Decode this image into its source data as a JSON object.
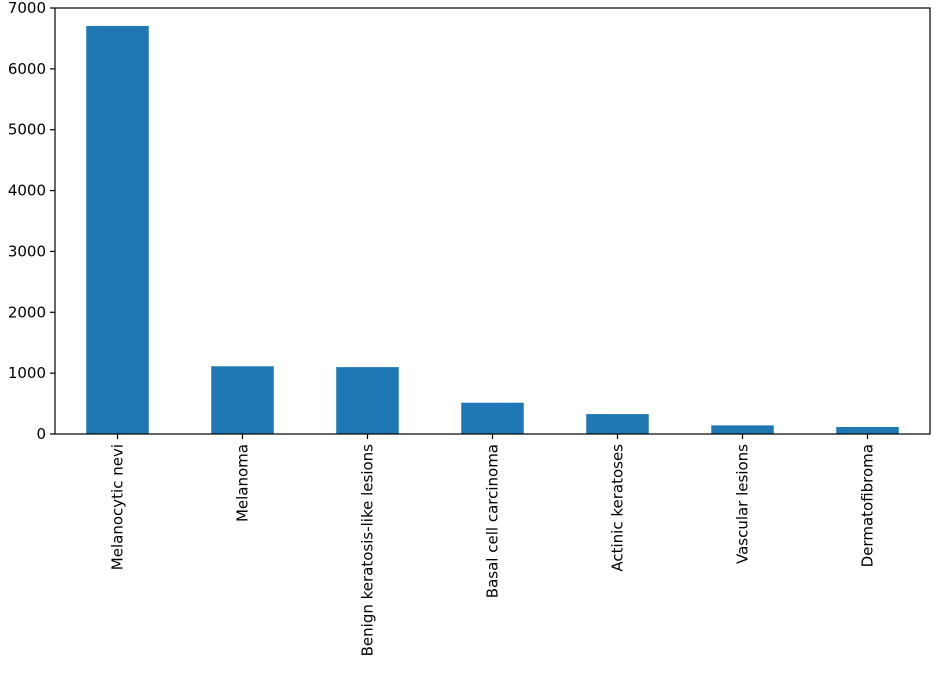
{
  "chart_data": {
    "type": "bar",
    "title": "",
    "xlabel": "",
    "ylabel": "",
    "categories": [
      "Melanocytic nevi",
      "Melanoma",
      "Benign keratosis-like lesions",
      "Basal cell carcinoma",
      "Actinic keratoses",
      "Vascular lesions",
      "Dermatofibroma"
    ],
    "values": [
      6705,
      1113,
      1099,
      514,
      327,
      142,
      115
    ],
    "ylim": [
      0,
      7000
    ],
    "yticks": [
      0,
      1000,
      2000,
      3000,
      4000,
      5000,
      6000,
      7000
    ],
    "bar_color": "#1f77b4",
    "grid": false,
    "legend": "none"
  }
}
